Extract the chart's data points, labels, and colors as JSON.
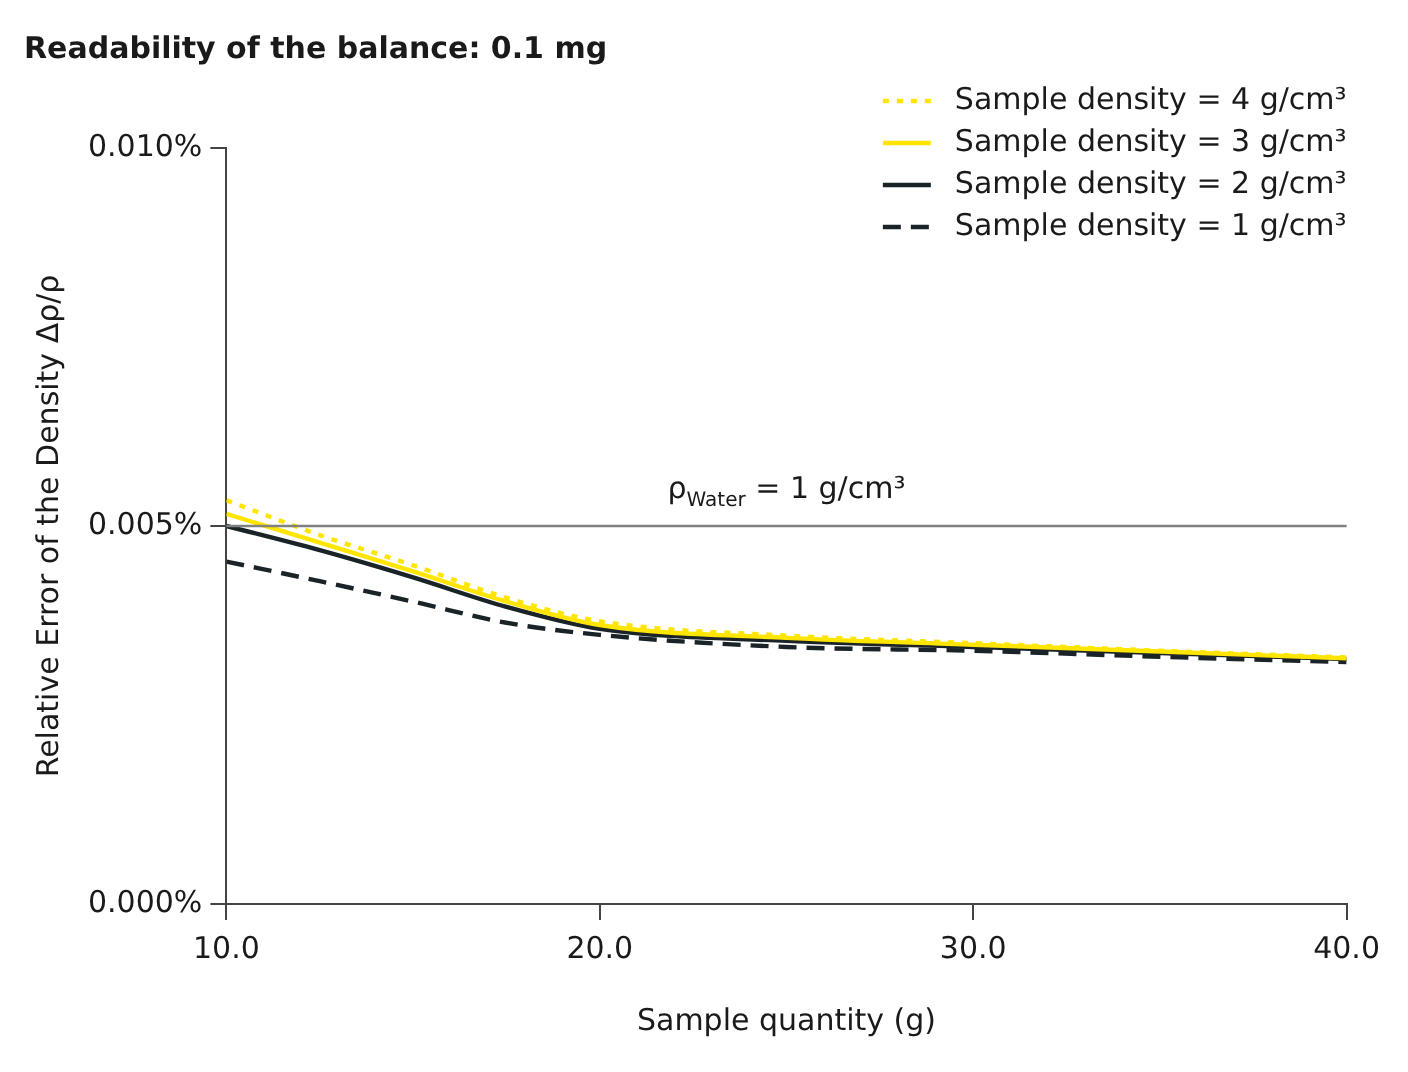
{
  "chart_data": {
    "type": "line",
    "title": "Readability of the balance: 0.1 mg",
    "xlabel": "Sample quantity (g)",
    "ylabel": "Relative Error of the Density Δρ/ρ",
    "x": [
      10,
      12.5,
      15,
      17.5,
      20,
      25,
      30,
      35,
      40
    ],
    "xlim": [
      10,
      40
    ],
    "xticks": [
      {
        "value": 10,
        "label": "10.0"
      },
      {
        "value": 20,
        "label": "20.0"
      },
      {
        "value": 30,
        "label": "30.0"
      },
      {
        "value": 40,
        "label": "40.0"
      }
    ],
    "ylim": [
      0,
      0.01
    ],
    "yticks": [
      {
        "value": 0,
        "label": "0.000%"
      },
      {
        "value": 0.005,
        "label": "0.005%"
      },
      {
        "value": 0.01,
        "label": "0.010%"
      }
    ],
    "grid": false,
    "legend": "top right",
    "marker": "none",
    "ref_lines": [
      {
        "axis": "y",
        "value": 0.005,
        "label": "ρ$_{Water}$ = 1 g/cm³",
        "color": "#808080"
      }
    ],
    "series": [
      {
        "name": "Sample density = 4 g/cm³",
        "color": "#ffe500",
        "line_style": "dotted",
        "values": [
          0.00534,
          0.00488,
          0.00448,
          0.00405,
          0.00374,
          0.00355,
          0.00345,
          0.00335,
          0.00326
        ]
      },
      {
        "name": "Sample density = 3 g/cm³",
        "color": "#ffe500",
        "line_style": "solid",
        "values": [
          0.00516,
          0.00478,
          0.0044,
          0.004,
          0.00369,
          0.00352,
          0.00343,
          0.00334,
          0.00325
        ]
      },
      {
        "name": "Sample density = 2 g/cm³",
        "color": "#1a2428",
        "line_style": "solid",
        "values": [
          0.005,
          0.00468,
          0.00432,
          0.00393,
          0.00364,
          0.00348,
          0.0034,
          0.00332,
          0.00324
        ]
      },
      {
        "name": "Sample density = 1 g/cm³",
        "color": "#1a2428",
        "line_style": "dashed",
        "values": [
          0.00453,
          0.00427,
          0.004,
          0.00372,
          0.00356,
          0.0034,
          0.00335,
          0.00327,
          0.0032
        ]
      }
    ]
  }
}
